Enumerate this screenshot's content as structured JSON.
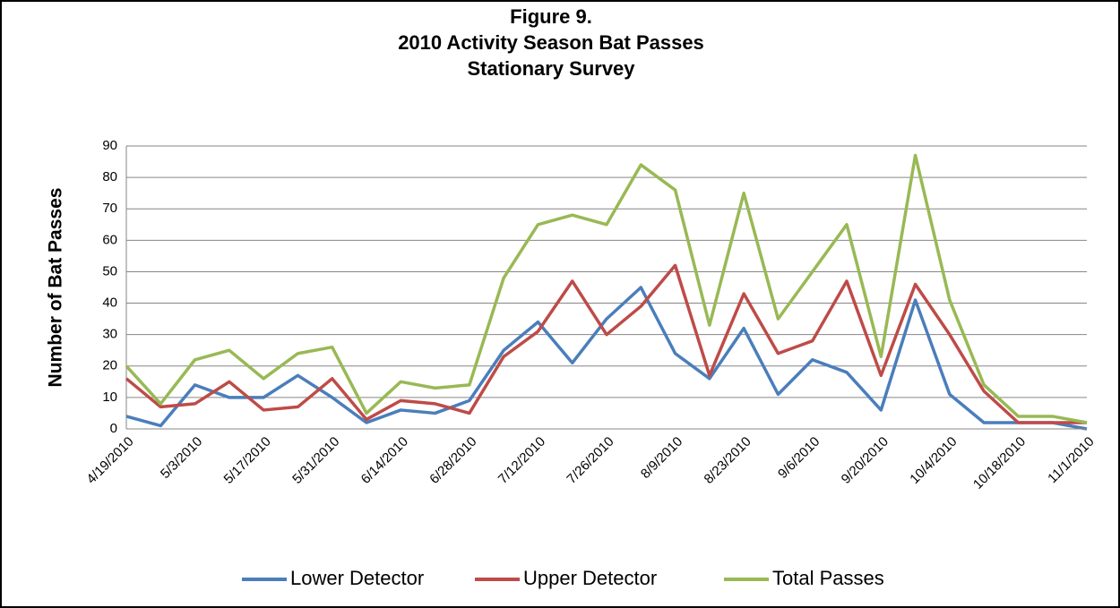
{
  "chart_data": {
    "type": "line",
    "title_lines": [
      "Figure 9.",
      "2010 Activity Season Bat Passes",
      "Stationary Survey"
    ],
    "y_label": "Number of Bat Passes",
    "categories": [
      "4/19/2010",
      null,
      "5/3/2010",
      null,
      "5/17/2010",
      null,
      "5/31/2010",
      null,
      "6/14/2010",
      null,
      "6/28/2010",
      null,
      "7/12/2010",
      null,
      "7/26/2010",
      null,
      "8/9/2010",
      null,
      "8/23/2010",
      null,
      "9/6/2010",
      null,
      "9/20/2010",
      null,
      "10/4/2010",
      null,
      "10/18/2010",
      null,
      "11/1/2010"
    ],
    "series": [
      {
        "name": "Lower Detector",
        "color": "#4a7ebb",
        "values": [
          4,
          1,
          14,
          10,
          10,
          17,
          10,
          2,
          6,
          5,
          9,
          25,
          34,
          21,
          35,
          45,
          24,
          16,
          32,
          11,
          22,
          18,
          6,
          41,
          11,
          2,
          2,
          2,
          0
        ]
      },
      {
        "name": "Upper Detector",
        "color": "#be4b48",
        "values": [
          16,
          7,
          8,
          15,
          6,
          7,
          16,
          3,
          9,
          8,
          5,
          23,
          31,
          47,
          30,
          39,
          52,
          17,
          43,
          24,
          28,
          47,
          17,
          46,
          30,
          12,
          2,
          2,
          2
        ]
      },
      {
        "name": "Total Passes",
        "color": "#98b954",
        "values": [
          20,
          8,
          22,
          25,
          16,
          24,
          26,
          5,
          15,
          13,
          14,
          48,
          65,
          68,
          65,
          84,
          76,
          33,
          75,
          35,
          50,
          65,
          23,
          87,
          41,
          14,
          4,
          4,
          2
        ]
      }
    ],
    "ylim": [
      0,
      90
    ],
    "yticks": [
      0,
      10,
      20,
      30,
      40,
      50,
      60,
      70,
      80,
      90
    ],
    "grid": true,
    "legend": "bottom"
  }
}
